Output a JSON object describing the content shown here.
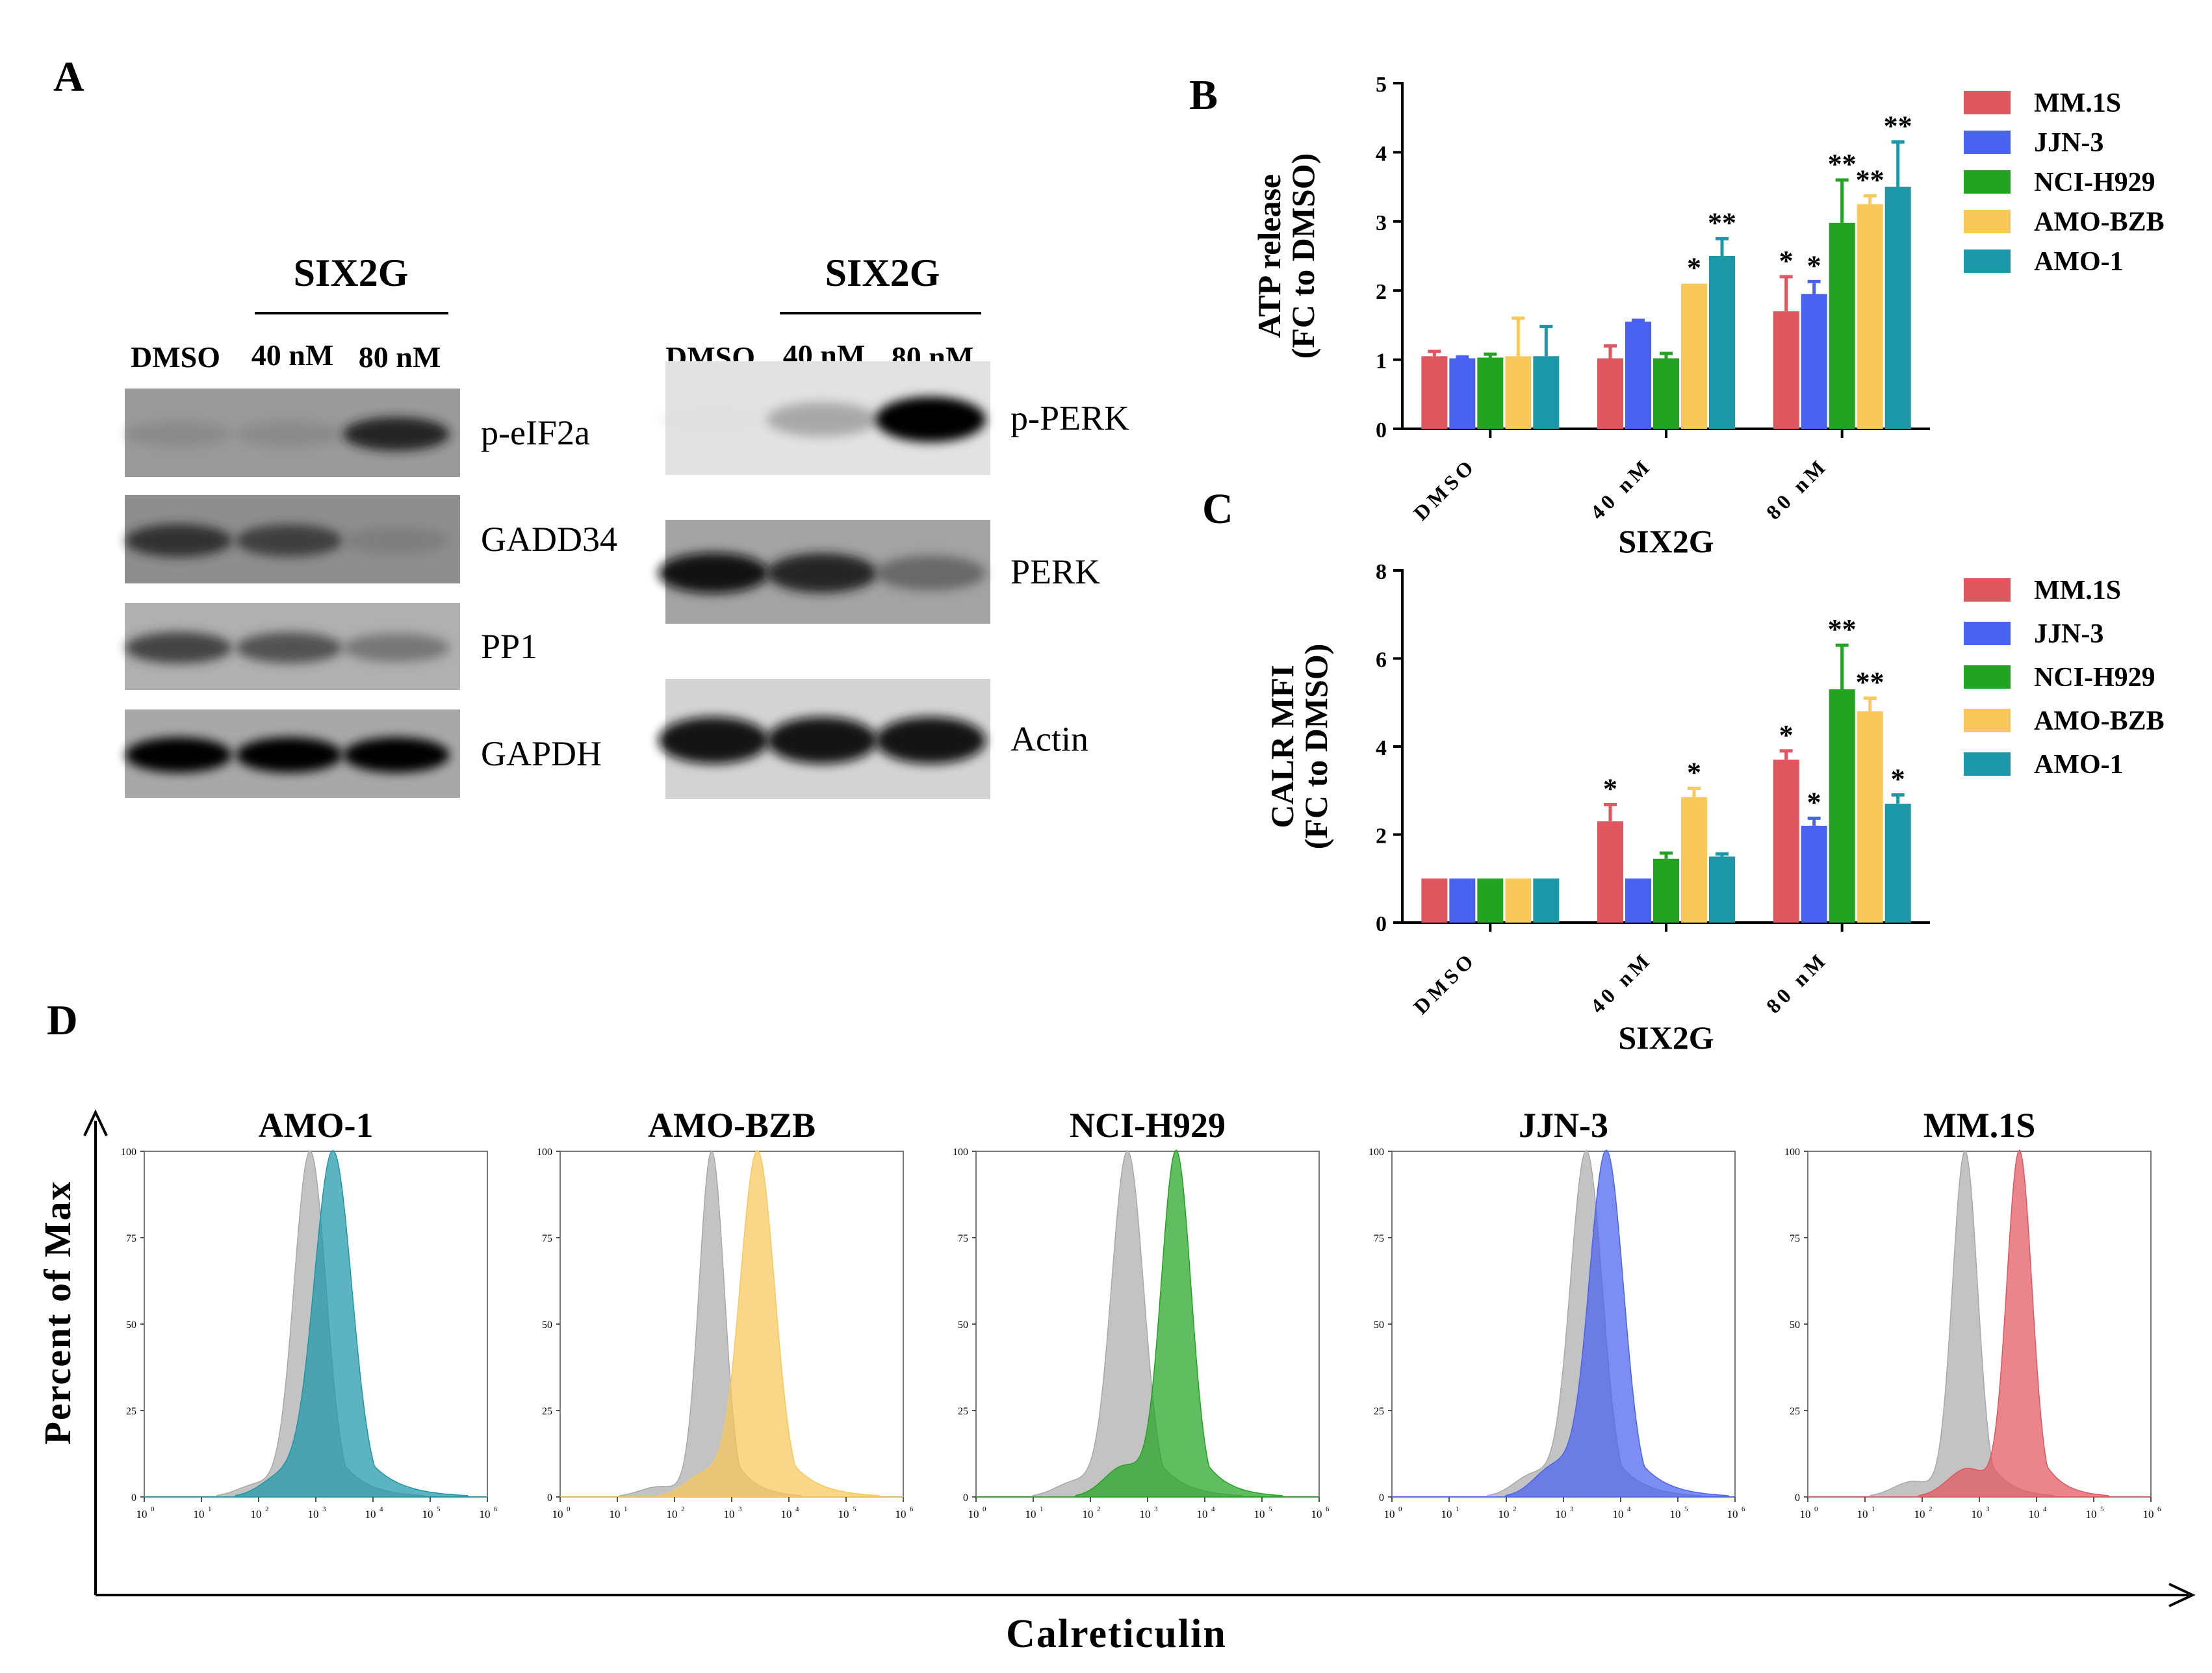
{
  "figure": {
    "panel_labels": {
      "a": "A",
      "b": "B",
      "c": "C",
      "d": "D"
    },
    "colors": {
      "MM.1S": "#e0565e",
      "JJN-3": "#4a62f0",
      "NCI-H929": "#22a322",
      "AMO-BZB": "#f8c85a",
      "AMO-1": "#1c97a8",
      "grey": "#bdbdbd"
    }
  },
  "western": {
    "left": {
      "group_label": "SIX2G",
      "lanes": [
        "DMSO",
        "40 nM",
        "80 nM"
      ],
      "blots": [
        {
          "name": "p-eIF2a",
          "intensity": [
            0.45,
            0.45,
            0.9
          ],
          "bg": "#9a9a9a"
        },
        {
          "name": "GADD34",
          "intensity": [
            0.85,
            0.8,
            0.5
          ],
          "bg": "#8e8e8e"
        },
        {
          "name": "PP1",
          "intensity": [
            0.8,
            0.75,
            0.6
          ],
          "bg": "#b0b0b0"
        },
        {
          "name": "GAPDH",
          "intensity": [
            1.0,
            1.0,
            1.0
          ],
          "bg": "#a8a8a8"
        }
      ]
    },
    "right": {
      "group_label": "SIX2G",
      "lanes": [
        "DMSO",
        "40 nM",
        "80 nM"
      ],
      "blots": [
        {
          "name": "p-PERK",
          "intensity": [
            0.05,
            0.45,
            1.0
          ],
          "bg": "#e2e2e2"
        },
        {
          "name": "PERK",
          "intensity": [
            0.95,
            0.9,
            0.65
          ],
          "bg": "#a3a3a3"
        },
        {
          "name": "Actin",
          "intensity": [
            0.95,
            0.95,
            0.95
          ],
          "bg": "#d3d3d3"
        }
      ]
    }
  },
  "chart_data": [
    {
      "id": "B",
      "type": "bar",
      "title": "",
      "ylabel_line1": "ATP release",
      "ylabel_line2": "(FC to DMSO)",
      "xlabel": "SIX2G",
      "ylim": [
        0,
        5
      ],
      "yticks": [
        "0",
        "1",
        "2",
        "3",
        "4",
        "5"
      ],
      "categories": [
        "DMSO",
        "40 nM",
        "80 nM"
      ],
      "series": [
        {
          "name": "MM.1S",
          "values": [
            1.05,
            1.02,
            1.7
          ],
          "errors": [
            0.07,
            0.18,
            0.5
          ],
          "sig": [
            "",
            "",
            "*"
          ]
        },
        {
          "name": "JJN-3",
          "values": [
            1.02,
            1.55,
            1.95
          ],
          "errors": [
            0.02,
            0.02,
            0.18
          ],
          "sig": [
            "",
            "",
            "*"
          ]
        },
        {
          "name": "NCI-H929",
          "values": [
            1.03,
            1.02,
            2.98
          ],
          "errors": [
            0.05,
            0.07,
            0.62
          ],
          "sig": [
            "",
            "",
            "**"
          ]
        },
        {
          "name": "AMO-BZB",
          "values": [
            1.05,
            2.1,
            3.25
          ],
          "errors": [
            0.55,
            0.0,
            0.12
          ],
          "sig": [
            "",
            "*",
            "**"
          ]
        },
        {
          "name": "AMO-1",
          "values": [
            1.05,
            2.5,
            3.5
          ],
          "errors": [
            0.43,
            0.25,
            0.65
          ],
          "sig": [
            "",
            "**",
            "**"
          ]
        }
      ]
    },
    {
      "id": "C",
      "type": "bar",
      "title": "",
      "ylabel_line1": "CALR MFI",
      "ylabel_line2": "(FC to DMSO)",
      "xlabel": "SIX2G",
      "ylim": [
        0,
        8
      ],
      "yticks": [
        "0",
        "2",
        "4",
        "6",
        "8"
      ],
      "categories": [
        "DMSO",
        "40 nM",
        "80 nM"
      ],
      "series": [
        {
          "name": "MM.1S",
          "values": [
            1.0,
            2.3,
            3.7
          ],
          "errors": [
            0.0,
            0.38,
            0.2
          ],
          "sig": [
            "",
            "*",
            "*"
          ]
        },
        {
          "name": "JJN-3",
          "values": [
            1.0,
            1.0,
            2.2
          ],
          "errors": [
            0.0,
            0.0,
            0.17
          ],
          "sig": [
            "",
            "",
            "*"
          ]
        },
        {
          "name": "NCI-H929",
          "values": [
            1.0,
            1.45,
            5.3
          ],
          "errors": [
            0.0,
            0.13,
            1.0
          ],
          "sig": [
            "",
            "",
            "**"
          ]
        },
        {
          "name": "AMO-BZB",
          "values": [
            1.0,
            2.85,
            4.8
          ],
          "errors": [
            0.0,
            0.2,
            0.3
          ],
          "sig": [
            "",
            "*",
            "**"
          ]
        },
        {
          "name": "AMO-1",
          "values": [
            1.0,
            1.5,
            2.7
          ],
          "errors": [
            0.0,
            0.06,
            0.2
          ],
          "sig": [
            "",
            "",
            "*"
          ]
        }
      ]
    },
    {
      "id": "D",
      "type": "area",
      "ylabel": "Percent  of Max",
      "xlabel": "Calreticulin",
      "x_scale": "log10",
      "xlim": [
        0,
        6
      ],
      "ylim": [
        0,
        100
      ],
      "yticks": [
        "0",
        "25",
        "50",
        "75",
        "100"
      ],
      "xticks_exp": [
        "0",
        "1",
        "2",
        "3",
        "4",
        "5",
        "6"
      ],
      "panels": [
        {
          "title": "AMO-1",
          "color_key": "AMO-1",
          "control": {
            "peak": 2.9,
            "width": 0.28,
            "tail": 0.25
          },
          "treated": {
            "peak": 3.3,
            "width": 0.33,
            "tail": 0.4
          }
        },
        {
          "title": "AMO-BZB",
          "color_key": "AMO-BZB",
          "control": {
            "peak": 2.65,
            "width": 0.22,
            "tail": 0.2
          },
          "treated": {
            "peak": 3.45,
            "width": 0.3,
            "tail": 0.45
          }
        },
        {
          "title": "NCI-H929",
          "color_key": "NCI-H929",
          "control": {
            "peak": 2.65,
            "width": 0.28,
            "tail": 0.3
          },
          "treated": {
            "peak": 3.5,
            "width": 0.26,
            "tail": 0.6
          }
        },
        {
          "title": "JJN-3",
          "color_key": "JJN-3",
          "control": {
            "peak": 3.4,
            "width": 0.28,
            "tail": 0.45
          },
          "treated": {
            "peak": 3.75,
            "width": 0.3,
            "tail": 0.6
          }
        },
        {
          "title": "MM.1S",
          "color_key": "MM.1S",
          "control": {
            "peak": 2.75,
            "width": 0.22,
            "tail": 0.3
          },
          "treated": {
            "peak": 3.7,
            "width": 0.22,
            "tail": 0.55
          }
        }
      ]
    }
  ]
}
